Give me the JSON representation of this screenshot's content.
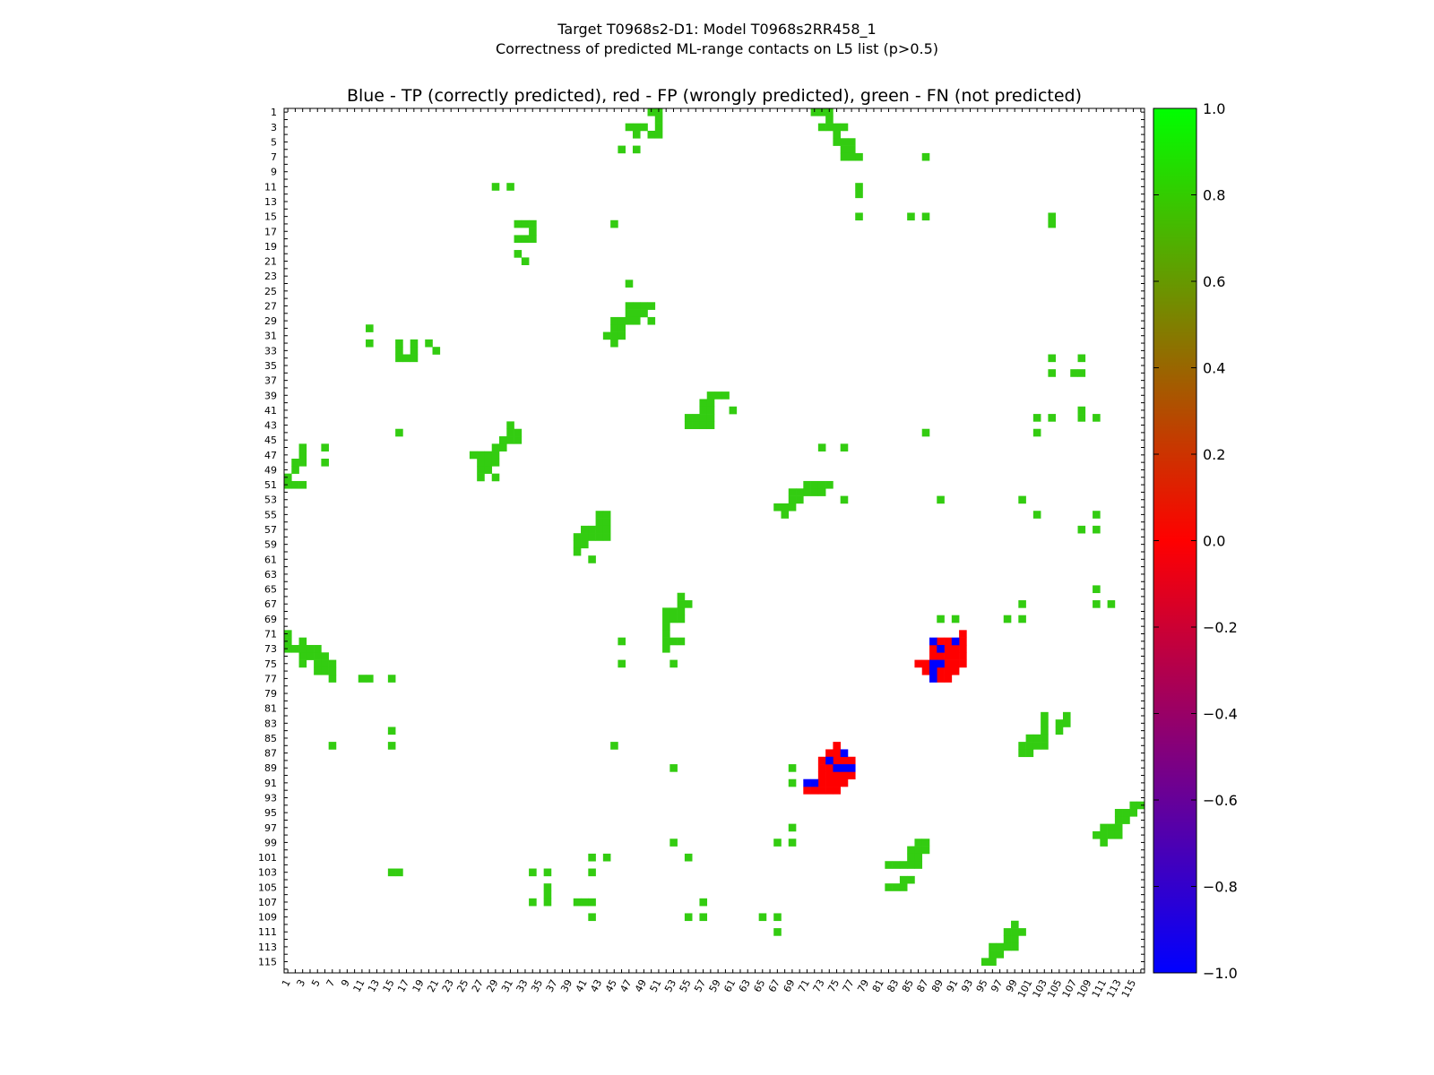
{
  "figure": {
    "title_line1": "Target T0968s2-D1: Model T0968s2RR458_1",
    "title_line2": "Correctness of predicted ML-range contacts on L5 list (p>0.5)"
  },
  "chart_data": {
    "type": "heatmap",
    "title": "Blue - TP (correctly predicted), red - FP (wrongly predicted), green - FN (not predicted)",
    "xlabel": "",
    "ylabel": "",
    "xlim": [
      1,
      116
    ],
    "ylim": [
      1,
      116
    ],
    "x_ticks": [
      "1",
      "3",
      "5",
      "7",
      "9",
      "11",
      "13",
      "15",
      "17",
      "19",
      "21",
      "23",
      "25",
      "27",
      "29",
      "31",
      "33",
      "35",
      "37",
      "39",
      "41",
      "43",
      "45",
      "47",
      "49",
      "51",
      "53",
      "55",
      "57",
      "59",
      "61",
      "63",
      "65",
      "67",
      "69",
      "71",
      "73",
      "75",
      "77",
      "79",
      "81",
      "83",
      "85",
      "87",
      "89",
      "91",
      "93",
      "95",
      "97",
      "99",
      "101",
      "103",
      "105",
      "107",
      "109",
      "111",
      "113",
      "115"
    ],
    "y_ticks": [
      "1",
      "3",
      "5",
      "7",
      "9",
      "11",
      "13",
      "15",
      "17",
      "19",
      "21",
      "23",
      "25",
      "27",
      "29",
      "31",
      "33",
      "35",
      "37",
      "39",
      "41",
      "43",
      "45",
      "47",
      "49",
      "51",
      "53",
      "55",
      "57",
      "59",
      "61",
      "63",
      "65",
      "67",
      "69",
      "71",
      "73",
      "75",
      "77",
      "79",
      "81",
      "83",
      "85",
      "87",
      "89",
      "91",
      "93",
      "95",
      "97",
      "99",
      "101",
      "103",
      "105",
      "107",
      "109",
      "111",
      "113",
      "115"
    ],
    "colorbar": {
      "ticks": [
        "1.0",
        "0.8",
        "0.6",
        "0.4",
        "0.2",
        "0.0",
        "−0.2",
        "−0.4",
        "−0.6",
        "−0.8",
        "−1.0"
      ],
      "range": [
        -1.0,
        1.0
      ],
      "colors": [
        "#0000ff",
        "#ff0000",
        "#00ff00"
      ]
    },
    "cell_colors": {
      "fn": "#33cc11",
      "tp": "#0000ff",
      "fp": "#ff0000"
    },
    "fn_cells": [
      [
        50,
        1
      ],
      [
        51,
        1
      ],
      [
        72,
        1
      ],
      [
        73,
        1
      ],
      [
        74,
        1
      ],
      [
        51,
        2
      ],
      [
        74,
        2
      ],
      [
        47,
        3
      ],
      [
        48,
        3
      ],
      [
        49,
        3
      ],
      [
        51,
        3
      ],
      [
        73,
        3
      ],
      [
        74,
        3
      ],
      [
        75,
        3
      ],
      [
        76,
        3
      ],
      [
        48,
        4
      ],
      [
        50,
        4
      ],
      [
        51,
        4
      ],
      [
        75,
        4
      ],
      [
        75,
        5
      ],
      [
        76,
        5
      ],
      [
        77,
        5
      ],
      [
        46,
        6
      ],
      [
        48,
        6
      ],
      [
        76,
        6
      ],
      [
        77,
        6
      ],
      [
        76,
        7
      ],
      [
        77,
        7
      ],
      [
        78,
        7
      ],
      [
        87,
        7
      ],
      [
        29,
        11
      ],
      [
        31,
        11
      ],
      [
        78,
        11
      ],
      [
        78,
        12
      ],
      [
        78,
        15
      ],
      [
        85,
        15
      ],
      [
        87,
        15
      ],
      [
        104,
        15
      ],
      [
        32,
        16
      ],
      [
        33,
        16
      ],
      [
        34,
        16
      ],
      [
        45,
        16
      ],
      [
        104,
        16
      ],
      [
        34,
        17
      ],
      [
        32,
        18
      ],
      [
        33,
        18
      ],
      [
        34,
        18
      ],
      [
        32,
        20
      ],
      [
        33,
        21
      ],
      [
        47,
        24
      ],
      [
        47,
        27
      ],
      [
        48,
        27
      ],
      [
        49,
        27
      ],
      [
        50,
        27
      ],
      [
        47,
        28
      ],
      [
        48,
        28
      ],
      [
        49,
        28
      ],
      [
        45,
        29
      ],
      [
        46,
        29
      ],
      [
        47,
        29
      ],
      [
        48,
        29
      ],
      [
        50,
        29
      ],
      [
        12,
        30
      ],
      [
        45,
        30
      ],
      [
        46,
        30
      ],
      [
        44,
        31
      ],
      [
        45,
        31
      ],
      [
        46,
        31
      ],
      [
        12,
        32
      ],
      [
        16,
        32
      ],
      [
        18,
        32
      ],
      [
        20,
        32
      ],
      [
        45,
        32
      ],
      [
        16,
        33
      ],
      [
        18,
        33
      ],
      [
        21,
        33
      ],
      [
        16,
        34
      ],
      [
        17,
        34
      ],
      [
        18,
        34
      ],
      [
        104,
        34
      ],
      [
        108,
        34
      ],
      [
        104,
        36
      ],
      [
        107,
        36
      ],
      [
        108,
        36
      ],
      [
        58,
        39
      ],
      [
        59,
        39
      ],
      [
        60,
        39
      ],
      [
        57,
        40
      ],
      [
        58,
        40
      ],
      [
        57,
        41
      ],
      [
        58,
        41
      ],
      [
        61,
        41
      ],
      [
        108,
        41
      ],
      [
        55,
        42
      ],
      [
        56,
        42
      ],
      [
        57,
        42
      ],
      [
        58,
        42
      ],
      [
        102,
        42
      ],
      [
        104,
        42
      ],
      [
        108,
        42
      ],
      [
        110,
        42
      ],
      [
        55,
        43
      ],
      [
        56,
        43
      ],
      [
        57,
        43
      ],
      [
        58,
        43
      ],
      [
        31,
        43
      ],
      [
        31,
        44
      ],
      [
        32,
        44
      ],
      [
        16,
        44
      ],
      [
        87,
        44
      ],
      [
        102,
        44
      ],
      [
        30,
        45
      ],
      [
        31,
        45
      ],
      [
        32,
        45
      ],
      [
        3,
        46
      ],
      [
        6,
        46
      ],
      [
        29,
        46
      ],
      [
        30,
        46
      ],
      [
        73,
        46
      ],
      [
        76,
        46
      ],
      [
        3,
        47
      ],
      [
        26,
        47
      ],
      [
        27,
        47
      ],
      [
        28,
        47
      ],
      [
        29,
        47
      ],
      [
        2,
        48
      ],
      [
        3,
        48
      ],
      [
        6,
        48
      ],
      [
        27,
        48
      ],
      [
        28,
        48
      ],
      [
        29,
        48
      ],
      [
        2,
        49
      ],
      [
        27,
        49
      ],
      [
        28,
        49
      ],
      [
        1,
        50
      ],
      [
        27,
        50
      ],
      [
        29,
        50
      ],
      [
        1,
        51
      ],
      [
        2,
        51
      ],
      [
        3,
        51
      ],
      [
        71,
        51
      ],
      [
        72,
        51
      ],
      [
        73,
        51
      ],
      [
        74,
        51
      ],
      [
        69,
        52
      ],
      [
        70,
        52
      ],
      [
        71,
        52
      ],
      [
        72,
        52
      ],
      [
        73,
        52
      ],
      [
        69,
        53
      ],
      [
        70,
        53
      ],
      [
        76,
        53
      ],
      [
        89,
        53
      ],
      [
        100,
        53
      ],
      [
        67,
        54
      ],
      [
        68,
        54
      ],
      [
        69,
        54
      ],
      [
        43,
        55
      ],
      [
        44,
        55
      ],
      [
        68,
        55
      ],
      [
        102,
        55
      ],
      [
        110,
        55
      ],
      [
        43,
        56
      ],
      [
        44,
        56
      ],
      [
        41,
        57
      ],
      [
        42,
        57
      ],
      [
        43,
        57
      ],
      [
        44,
        57
      ],
      [
        108,
        57
      ],
      [
        110,
        57
      ],
      [
        40,
        58
      ],
      [
        41,
        58
      ],
      [
        42,
        58
      ],
      [
        43,
        58
      ],
      [
        44,
        58
      ],
      [
        40,
        59
      ],
      [
        41,
        59
      ],
      [
        40,
        60
      ],
      [
        42,
        61
      ],
      [
        54,
        66
      ],
      [
        110,
        65
      ],
      [
        54,
        67
      ],
      [
        55,
        67
      ],
      [
        100,
        67
      ],
      [
        110,
        67
      ],
      [
        112,
        67
      ],
      [
        52,
        68
      ],
      [
        53,
        68
      ],
      [
        54,
        68
      ],
      [
        52,
        69
      ],
      [
        53,
        69
      ],
      [
        54,
        69
      ],
      [
        89,
        69
      ],
      [
        91,
        69
      ],
      [
        98,
        69
      ],
      [
        100,
        69
      ],
      [
        52,
        70
      ],
      [
        1,
        71
      ],
      [
        52,
        71
      ],
      [
        1,
        72
      ],
      [
        3,
        72
      ],
      [
        46,
        72
      ],
      [
        52,
        72
      ],
      [
        53,
        72
      ],
      [
        54,
        72
      ],
      [
        1,
        73
      ],
      [
        2,
        73
      ],
      [
        3,
        73
      ],
      [
        4,
        73
      ],
      [
        5,
        73
      ],
      [
        52,
        73
      ],
      [
        3,
        74
      ],
      [
        4,
        74
      ],
      [
        5,
        74
      ],
      [
        6,
        74
      ],
      [
        3,
        75
      ],
      [
        5,
        75
      ],
      [
        6,
        75
      ],
      [
        7,
        75
      ],
      [
        46,
        75
      ],
      [
        53,
        75
      ],
      [
        5,
        76
      ],
      [
        6,
        76
      ],
      [
        7,
        76
      ],
      [
        7,
        77
      ],
      [
        11,
        77
      ],
      [
        12,
        77
      ],
      [
        15,
        77
      ],
      [
        103,
        82
      ],
      [
        106,
        82
      ],
      [
        103,
        83
      ],
      [
        105,
        83
      ],
      [
        106,
        83
      ],
      [
        15,
        84
      ],
      [
        103,
        84
      ],
      [
        105,
        84
      ],
      [
        102,
        85
      ],
      [
        103,
        85
      ],
      [
        101,
        85
      ],
      [
        7,
        86
      ],
      [
        15,
        86
      ],
      [
        45,
        86
      ],
      [
        100,
        86
      ],
      [
        101,
        86
      ],
      [
        102,
        86
      ],
      [
        103,
        86
      ],
      [
        100,
        87
      ],
      [
        101,
        87
      ],
      [
        53,
        89
      ],
      [
        69,
        89
      ],
      [
        69,
        91
      ],
      [
        115,
        94
      ],
      [
        116,
        94
      ],
      [
        113,
        95
      ],
      [
        114,
        95
      ],
      [
        115,
        95
      ],
      [
        113,
        96
      ],
      [
        114,
        96
      ],
      [
        69,
        97
      ],
      [
        111,
        97
      ],
      [
        112,
        97
      ],
      [
        113,
        97
      ],
      [
        110,
        98
      ],
      [
        111,
        98
      ],
      [
        112,
        98
      ],
      [
        113,
        98
      ],
      [
        53,
        99
      ],
      [
        67,
        99
      ],
      [
        69,
        99
      ],
      [
        86,
        99
      ],
      [
        87,
        99
      ],
      [
        111,
        99
      ],
      [
        85,
        100
      ],
      [
        86,
        100
      ],
      [
        87,
        100
      ],
      [
        42,
        101
      ],
      [
        44,
        101
      ],
      [
        55,
        101
      ],
      [
        85,
        101
      ],
      [
        86,
        101
      ],
      [
        82,
        102
      ],
      [
        83,
        102
      ],
      [
        84,
        102
      ],
      [
        85,
        102
      ],
      [
        86,
        102
      ],
      [
        15,
        103
      ],
      [
        16,
        103
      ],
      [
        34,
        103
      ],
      [
        36,
        103
      ],
      [
        42,
        103
      ],
      [
        84,
        104
      ],
      [
        85,
        104
      ],
      [
        36,
        105
      ],
      [
        82,
        105
      ],
      [
        83,
        105
      ],
      [
        84,
        105
      ],
      [
        36,
        106
      ],
      [
        34,
        107
      ],
      [
        36,
        107
      ],
      [
        40,
        107
      ],
      [
        41,
        107
      ],
      [
        42,
        107
      ],
      [
        57,
        107
      ],
      [
        42,
        109
      ],
      [
        55,
        109
      ],
      [
        57,
        109
      ],
      [
        65,
        109
      ],
      [
        67,
        109
      ],
      [
        99,
        110
      ],
      [
        98,
        111
      ],
      [
        99,
        111
      ],
      [
        100,
        111
      ],
      [
        67,
        111
      ],
      [
        98,
        112
      ],
      [
        99,
        112
      ],
      [
        96,
        113
      ],
      [
        97,
        113
      ],
      [
        98,
        113
      ],
      [
        99,
        113
      ],
      [
        96,
        114
      ],
      [
        97,
        114
      ],
      [
        95,
        115
      ],
      [
        96,
        115
      ]
    ],
    "tp_cells": [
      [
        91,
        72
      ],
      [
        88,
        72
      ],
      [
        89,
        73
      ],
      [
        88,
        75
      ],
      [
        89,
        75
      ],
      [
        88,
        76
      ],
      [
        88,
        77
      ],
      [
        76,
        87
      ],
      [
        74,
        88
      ],
      [
        75,
        89
      ],
      [
        76,
        89
      ],
      [
        77,
        89
      ],
      [
        71,
        91
      ],
      [
        72,
        91
      ]
    ],
    "fp_cells": [
      [
        92,
        71
      ],
      [
        89,
        72
      ],
      [
        90,
        72
      ],
      [
        92,
        72
      ],
      [
        88,
        73
      ],
      [
        90,
        73
      ],
      [
        91,
        73
      ],
      [
        92,
        73
      ],
      [
        88,
        74
      ],
      [
        89,
        74
      ],
      [
        90,
        74
      ],
      [
        91,
        74
      ],
      [
        92,
        74
      ],
      [
        86,
        75
      ],
      [
        87,
        75
      ],
      [
        90,
        75
      ],
      [
        91,
        75
      ],
      [
        92,
        75
      ],
      [
        87,
        76
      ],
      [
        89,
        76
      ],
      [
        90,
        76
      ],
      [
        91,
        76
      ],
      [
        89,
        77
      ],
      [
        90,
        77
      ],
      [
        75,
        86
      ],
      [
        74,
        87
      ],
      [
        75,
        87
      ],
      [
        73,
        88
      ],
      [
        75,
        88
      ],
      [
        76,
        88
      ],
      [
        77,
        88
      ],
      [
        73,
        89
      ],
      [
        74,
        89
      ],
      [
        73,
        90
      ],
      [
        74,
        90
      ],
      [
        75,
        90
      ],
      [
        76,
        90
      ],
      [
        77,
        90
      ],
      [
        73,
        91
      ],
      [
        74,
        91
      ],
      [
        75,
        91
      ],
      [
        76,
        91
      ],
      [
        71,
        92
      ],
      [
        72,
        92
      ],
      [
        73,
        92
      ],
      [
        74,
        92
      ],
      [
        75,
        92
      ]
    ]
  }
}
